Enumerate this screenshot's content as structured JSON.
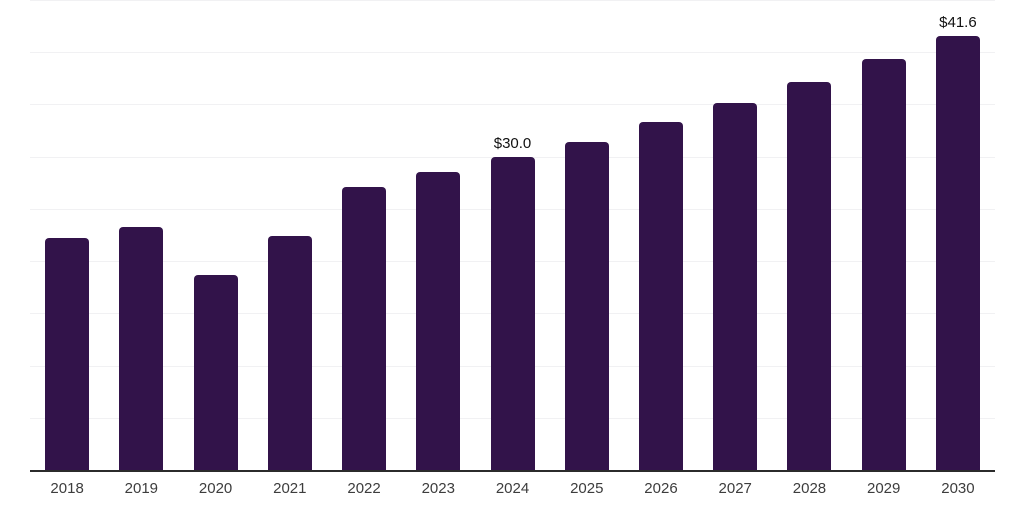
{
  "chart_data": {
    "type": "bar",
    "title": "",
    "xlabel": "",
    "ylabel": "",
    "categories": [
      "2018",
      "2019",
      "2020",
      "2021",
      "2022",
      "2023",
      "2024",
      "2025",
      "2026",
      "2027",
      "2028",
      "2029",
      "2030"
    ],
    "values": [
      22.2,
      23.3,
      18.7,
      22.4,
      27.1,
      28.5,
      30.0,
      31.4,
      33.3,
      35.1,
      37.2,
      39.4,
      41.6
    ],
    "value_labels": [
      "",
      "",
      "",
      "",
      "",
      "",
      "$30.0",
      "",
      "",
      "",
      "",
      "",
      "$41.6"
    ],
    "ylim": [
      0,
      45
    ],
    "grid_step": 5,
    "grid": "horizontal",
    "legend": "none",
    "colors": {
      "bar": "#32134a",
      "axis_line": "#2b2b2b",
      "gridline": "#f1f1f3",
      "tick_label": "#3d3d3d",
      "value_label": "#111111",
      "background": "#ffffff"
    }
  }
}
